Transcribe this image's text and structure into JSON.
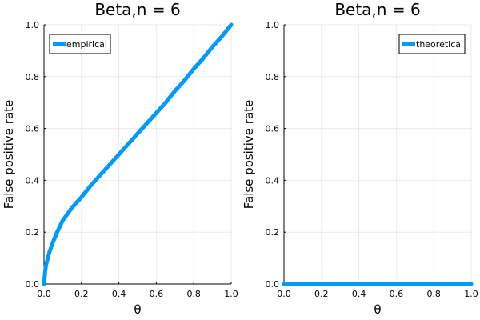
{
  "chart_data": [
    {
      "type": "line",
      "title": "Beta,n = 6",
      "xlabel": "θ",
      "ylabel": "False positive rate",
      "xlim": [
        0,
        1
      ],
      "ylim": [
        0,
        1
      ],
      "x_ticks": [
        "0.0",
        "0.2",
        "0.4",
        "0.6",
        "0.8",
        "1.0"
      ],
      "y_ticks": [
        "0.0",
        "0.2",
        "0.4",
        "0.6",
        "0.8",
        "1.0"
      ],
      "grid": true,
      "legend_position": "top-right",
      "series": [
        {
          "name": "empirical",
          "color": "#009AFA",
          "x": [
            0.0,
            0.005,
            0.01,
            0.02,
            0.03,
            0.05,
            0.07,
            0.1,
            0.15,
            0.2,
            0.25,
            0.3,
            0.35,
            0.4,
            0.45,
            0.5,
            0.55,
            0.6,
            0.65,
            0.7,
            0.75,
            0.8,
            0.85,
            0.9,
            0.95,
            1.0
          ],
          "y": [
            0.0,
            0.04,
            0.07,
            0.1,
            0.125,
            0.165,
            0.2,
            0.245,
            0.295,
            0.335,
            0.38,
            0.42,
            0.46,
            0.5,
            0.54,
            0.58,
            0.62,
            0.66,
            0.7,
            0.745,
            0.785,
            0.83,
            0.87,
            0.915,
            0.955,
            1.0
          ]
        }
      ]
    },
    {
      "type": "line",
      "title": "Beta,n = 6",
      "xlabel": "θ",
      "ylabel": "False positive rate",
      "xlim": [
        0,
        1
      ],
      "ylim": [
        0,
        1
      ],
      "x_ticks": [
        "0.0",
        "0.2",
        "0.4",
        "0.6",
        "0.8",
        "1.0"
      ],
      "y_ticks": [
        "0.0",
        "0.2",
        "0.4",
        "0.6",
        "0.8",
        "1.0"
      ],
      "grid": true,
      "legend_position": "top-right",
      "series": [
        {
          "name": "theoretica",
          "color": "#009AFA",
          "x": [
            0.0,
            1.0
          ],
          "y": [
            0.0,
            0.0
          ]
        }
      ]
    }
  ]
}
